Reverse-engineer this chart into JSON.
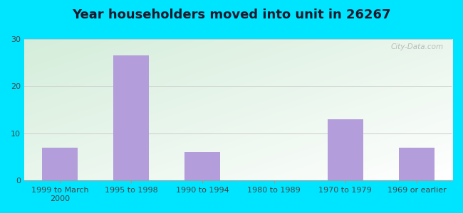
{
  "title": "Year householders moved into unit in 26267",
  "categories": [
    "1999 to March\n2000",
    "1995 to 1998",
    "1990 to 1994",
    "1980 to 1989",
    "1970 to 1979",
    "1969 or earlier"
  ],
  "values": [
    7,
    26.5,
    6,
    0,
    13,
    7
  ],
  "bar_color": "#b39ddb",
  "background_color": "#00e5ff",
  "ylim": [
    0,
    30
  ],
  "yticks": [
    0,
    10,
    20,
    30
  ],
  "title_fontsize": 13,
  "tick_fontsize": 8,
  "watermark": "City-Data.com"
}
